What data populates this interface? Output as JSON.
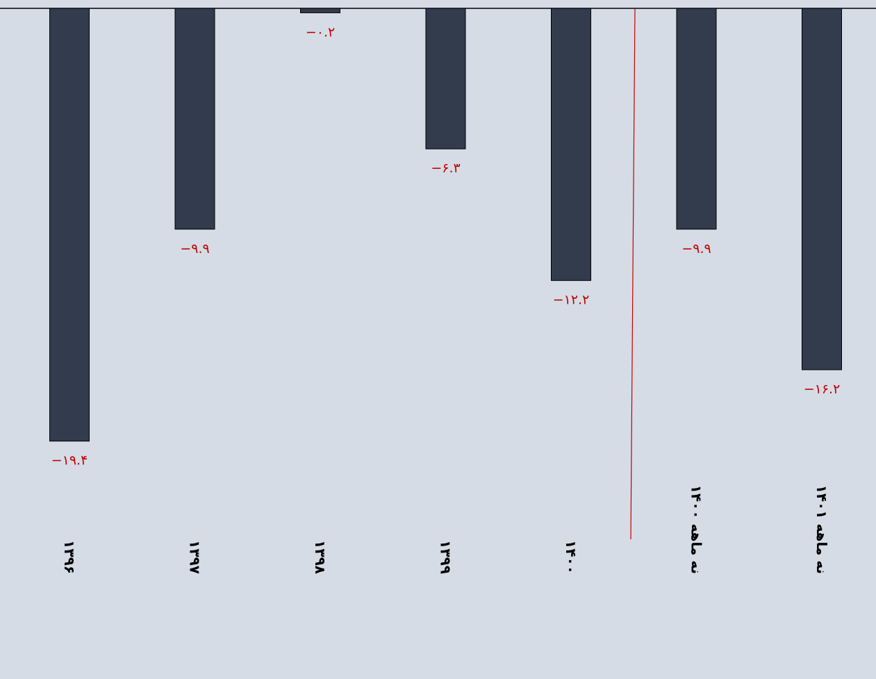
{
  "chart_data": {
    "type": "bar",
    "categories": [
      "۱۳۹۶",
      "۱۳۹۷",
      "۱۳۹۸",
      "۱۳۹۹",
      "۱۴۰۰",
      "نه ماهه ۱۴۰۰",
      "نه ماهه ۱۴۰۱"
    ],
    "values": [
      -19.4,
      -9.9,
      -0.2,
      -6.3,
      -12.2,
      -9.9,
      -16.2
    ],
    "value_labels": [
      "−۱۹.۴",
      "−۹.۹",
      "−۰.۲",
      "−۶.۳",
      "−۱۲.۲",
      "−۹.۹",
      "−۱۶.۲"
    ],
    "ylim": [
      -20,
      0
    ],
    "grid": false,
    "legend": "none",
    "title": "",
    "xlabel": "",
    "ylabel": "",
    "colors": {
      "background": "#d5dce6",
      "bar": "#323c4d",
      "data_label": "#c00000",
      "divider": "#c00000",
      "axis": "#000000"
    }
  }
}
